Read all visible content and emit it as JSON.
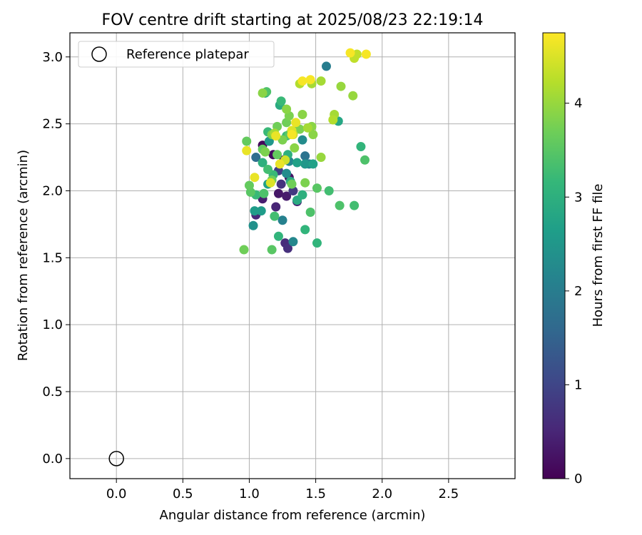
{
  "chart_data": {
    "type": "scatter",
    "title": "FOV centre drift starting at 2025/08/23 22:19:14",
    "xlabel": "Angular distance from reference (arcmin)",
    "ylabel": "Rotation from reference (arcmin)",
    "xlim": [
      -0.35,
      3.0
    ],
    "ylim": [
      -0.15,
      3.18
    ],
    "xticks": [
      "0.0",
      "0.5",
      "1.0",
      "1.5",
      "2.0",
      "2.5"
    ],
    "yticks": [
      "0.0",
      "0.5",
      "1.0",
      "1.5",
      "2.0",
      "2.5",
      "3.0"
    ],
    "grid": true,
    "legend": {
      "placement": "top-left",
      "entries": [
        {
          "label": "Reference platepar",
          "marker": "open-circle"
        }
      ]
    },
    "reference_point": {
      "x": 0.0,
      "y": 0.0
    },
    "colorbar": {
      "label": "Hours from first FF file",
      "range": [
        0,
        4.75
      ],
      "ticks": [
        "0",
        "1",
        "2",
        "3",
        "4"
      ],
      "colormap": "viridis",
      "colors": [
        "#440154",
        "#482878",
        "#3e4989",
        "#31688e",
        "#26828e",
        "#1f9e89",
        "#35b779",
        "#6ece58",
        "#b5de2b",
        "#fde725"
      ]
    },
    "series": [
      {
        "points": [
          {
            "x": 1.1,
            "y": 2.34,
            "t": 0.1
          },
          {
            "x": 1.18,
            "y": 2.27,
            "t": 0.15
          },
          {
            "x": 1.26,
            "y": 2.23,
            "t": 0.2
          },
          {
            "x": 1.3,
            "y": 2.1,
            "t": 0.25
          },
          {
            "x": 1.22,
            "y": 1.98,
            "t": 0.3
          },
          {
            "x": 1.28,
            "y": 1.96,
            "t": 0.35
          },
          {
            "x": 1.1,
            "y": 1.94,
            "t": 0.4
          },
          {
            "x": 1.36,
            "y": 1.92,
            "t": 0.45
          },
          {
            "x": 1.2,
            "y": 1.88,
            "t": 0.5
          },
          {
            "x": 1.05,
            "y": 1.82,
            "t": 0.55
          },
          {
            "x": 1.27,
            "y": 1.61,
            "t": 0.6
          },
          {
            "x": 1.29,
            "y": 1.57,
            "t": 0.65
          },
          {
            "x": 1.24,
            "y": 2.05,
            "t": 0.7
          },
          {
            "x": 1.33,
            "y": 2.0,
            "t": 0.8
          },
          {
            "x": 1.22,
            "y": 2.15,
            "t": 0.9
          },
          {
            "x": 1.05,
            "y": 2.25,
            "t": 1.7
          },
          {
            "x": 1.42,
            "y": 2.26,
            "t": 1.8
          },
          {
            "x": 1.58,
            "y": 2.93,
            "t": 2.0
          },
          {
            "x": 1.45,
            "y": 2.2,
            "t": 2.1
          },
          {
            "x": 1.3,
            "y": 2.22,
            "t": 2.2
          },
          {
            "x": 1.4,
            "y": 2.38,
            "t": 2.3
          },
          {
            "x": 1.33,
            "y": 1.62,
            "t": 2.2
          },
          {
            "x": 1.25,
            "y": 1.78,
            "t": 2.1
          },
          {
            "x": 1.28,
            "y": 2.13,
            "t": 2.3
          },
          {
            "x": 1.03,
            "y": 1.74,
            "t": 2.4
          },
          {
            "x": 1.15,
            "y": 2.37,
            "t": 2.5
          },
          {
            "x": 1.42,
            "y": 2.2,
            "t": 2.5
          },
          {
            "x": 1.04,
            "y": 1.85,
            "t": 2.6
          },
          {
            "x": 1.09,
            "y": 1.85,
            "t": 2.6
          },
          {
            "x": 1.36,
            "y": 2.21,
            "t": 2.7
          },
          {
            "x": 1.14,
            "y": 2.05,
            "t": 2.7
          },
          {
            "x": 1.48,
            "y": 2.2,
            "t": 2.7
          },
          {
            "x": 1.67,
            "y": 2.52,
            "t": 2.8
          },
          {
            "x": 1.23,
            "y": 2.64,
            "t": 2.9
          },
          {
            "x": 1.12,
            "y": 2.73,
            "t": 2.9
          },
          {
            "x": 1.31,
            "y": 2.07,
            "t": 2.9
          },
          {
            "x": 1.36,
            "y": 1.93,
            "t": 2.9
          },
          {
            "x": 1.4,
            "y": 1.97,
            "t": 3.0
          },
          {
            "x": 1.1,
            "y": 2.21,
            "t": 3.0
          },
          {
            "x": 1.29,
            "y": 2.27,
            "t": 3.0
          },
          {
            "x": 1.34,
            "y": 2.45,
            "t": 3.0
          },
          {
            "x": 1.22,
            "y": 1.66,
            "t": 3.1
          },
          {
            "x": 1.42,
            "y": 1.71,
            "t": 3.1
          },
          {
            "x": 1.51,
            "y": 1.61,
            "t": 3.1
          },
          {
            "x": 1.84,
            "y": 2.33,
            "t": 3.1
          },
          {
            "x": 1.24,
            "y": 2.67,
            "t": 3.2
          },
          {
            "x": 1.14,
            "y": 2.44,
            "t": 3.2
          },
          {
            "x": 1.18,
            "y": 2.12,
            "t": 3.2
          },
          {
            "x": 1.05,
            "y": 1.97,
            "t": 3.2
          },
          {
            "x": 1.28,
            "y": 2.41,
            "t": 3.2
          },
          {
            "x": 1.14,
            "y": 2.16,
            "t": 3.3
          },
          {
            "x": 1.19,
            "y": 1.81,
            "t": 3.3
          },
          {
            "x": 1.6,
            "y": 2.0,
            "t": 3.3
          },
          {
            "x": 1.79,
            "y": 1.89,
            "t": 3.3
          },
          {
            "x": 1.87,
            "y": 2.23,
            "t": 3.4
          },
          {
            "x": 1.13,
            "y": 2.74,
            "t": 3.4
          },
          {
            "x": 1.11,
            "y": 1.98,
            "t": 3.4
          },
          {
            "x": 1.46,
            "y": 1.84,
            "t": 3.4
          },
          {
            "x": 1.68,
            "y": 1.89,
            "t": 3.4
          },
          {
            "x": 1.51,
            "y": 2.02,
            "t": 3.5
          },
          {
            "x": 1.17,
            "y": 1.56,
            "t": 3.5
          },
          {
            "x": 1.01,
            "y": 1.99,
            "t": 3.5
          },
          {
            "x": 1.3,
            "y": 2.42,
            "t": 3.5
          },
          {
            "x": 1.0,
            "y": 2.04,
            "t": 3.6
          },
          {
            "x": 0.98,
            "y": 2.37,
            "t": 3.6
          },
          {
            "x": 1.21,
            "y": 2.27,
            "t": 3.6
          },
          {
            "x": 1.1,
            "y": 2.31,
            "t": 3.6
          },
          {
            "x": 1.32,
            "y": 2.05,
            "t": 3.7
          },
          {
            "x": 1.17,
            "y": 2.08,
            "t": 3.7
          },
          {
            "x": 1.21,
            "y": 2.48,
            "t": 3.7
          },
          {
            "x": 1.28,
            "y": 2.51,
            "t": 3.7
          },
          {
            "x": 0.96,
            "y": 1.56,
            "t": 3.7
          },
          {
            "x": 1.3,
            "y": 2.56,
            "t": 3.8
          },
          {
            "x": 1.38,
            "y": 2.46,
            "t": 3.8
          },
          {
            "x": 1.42,
            "y": 2.06,
            "t": 3.8
          },
          {
            "x": 1.12,
            "y": 2.29,
            "t": 3.8
          },
          {
            "x": 1.17,
            "y": 2.42,
            "t": 3.8
          },
          {
            "x": 1.25,
            "y": 2.38,
            "t": 3.8
          },
          {
            "x": 1.48,
            "y": 2.42,
            "t": 3.9
          },
          {
            "x": 1.4,
            "y": 2.57,
            "t": 3.9
          },
          {
            "x": 1.47,
            "y": 2.48,
            "t": 3.9
          },
          {
            "x": 1.1,
            "y": 2.73,
            "t": 3.9
          },
          {
            "x": 1.28,
            "y": 2.61,
            "t": 3.9
          },
          {
            "x": 1.34,
            "y": 2.32,
            "t": 3.9
          },
          {
            "x": 1.54,
            "y": 2.25,
            "t": 4.0
          },
          {
            "x": 1.78,
            "y": 2.71,
            "t": 4.0
          },
          {
            "x": 1.69,
            "y": 2.78,
            "t": 4.0
          },
          {
            "x": 1.47,
            "y": 2.8,
            "t": 4.1
          },
          {
            "x": 1.64,
            "y": 2.57,
            "t": 4.1
          },
          {
            "x": 1.54,
            "y": 2.82,
            "t": 4.1
          },
          {
            "x": 1.19,
            "y": 2.43,
            "t": 4.1
          },
          {
            "x": 1.44,
            "y": 2.47,
            "t": 4.1
          },
          {
            "x": 1.38,
            "y": 2.8,
            "t": 4.2
          },
          {
            "x": 1.63,
            "y": 2.53,
            "t": 4.2
          },
          {
            "x": 1.79,
            "y": 2.99,
            "t": 4.3
          },
          {
            "x": 1.81,
            "y": 3.02,
            "t": 4.3
          },
          {
            "x": 1.33,
            "y": 2.42,
            "t": 4.4
          },
          {
            "x": 1.27,
            "y": 2.23,
            "t": 4.4
          },
          {
            "x": 1.32,
            "y": 2.45,
            "t": 4.5
          },
          {
            "x": 1.16,
            "y": 2.06,
            "t": 4.5
          },
          {
            "x": 1.23,
            "y": 2.2,
            "t": 4.6
          },
          {
            "x": 0.98,
            "y": 2.3,
            "t": 4.6
          },
          {
            "x": 1.04,
            "y": 2.1,
            "t": 4.6
          },
          {
            "x": 1.2,
            "y": 2.41,
            "t": 4.6
          },
          {
            "x": 1.35,
            "y": 2.51,
            "t": 4.6
          },
          {
            "x": 1.32,
            "y": 2.42,
            "t": 4.7
          },
          {
            "x": 1.4,
            "y": 2.82,
            "t": 4.7
          },
          {
            "x": 1.46,
            "y": 2.83,
            "t": 4.7
          },
          {
            "x": 1.76,
            "y": 3.03,
            "t": 4.7
          },
          {
            "x": 1.88,
            "y": 3.02,
            "t": 4.7
          }
        ]
      }
    ]
  }
}
